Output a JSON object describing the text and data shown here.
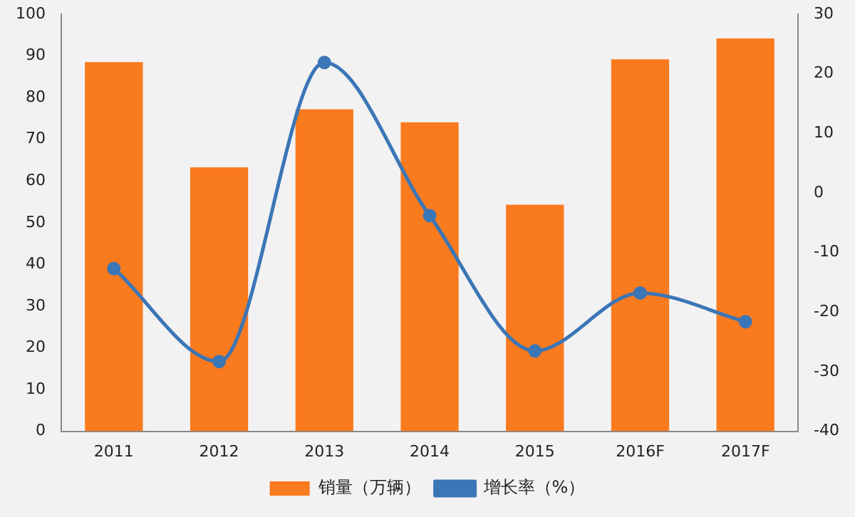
{
  "chart_data": {
    "type": "bar",
    "categories": [
      "2011",
      "2012",
      "2013",
      "2014",
      "2015",
      "2016F",
      "2017F"
    ],
    "series": [
      {
        "name": "销量（万辆）",
        "color": "#fa7a1e",
        "values": [
          88.5,
          63.3,
          77.2,
          74.1,
          54.3,
          89.2,
          94.2
        ]
      },
      {
        "name": "增长率（%）",
        "type": "line",
        "axis": "y2",
        "color": "#3b76b6",
        "values": [
          -12.7,
          -28.3,
          21.9,
          -3.8,
          -26.5,
          -16.8,
          -21.6
        ]
      }
    ],
    "ylim": [
      0,
      100
    ],
    "yticks": [
      0,
      10,
      20,
      30,
      40,
      50,
      60,
      70,
      80,
      90,
      100
    ],
    "y2lim": [
      -40,
      30
    ],
    "y2ticks": [
      -40,
      -30,
      -20,
      -10,
      0,
      10,
      20,
      30
    ],
    "grid": false,
    "legend": "bottom",
    "marker": "circle"
  }
}
